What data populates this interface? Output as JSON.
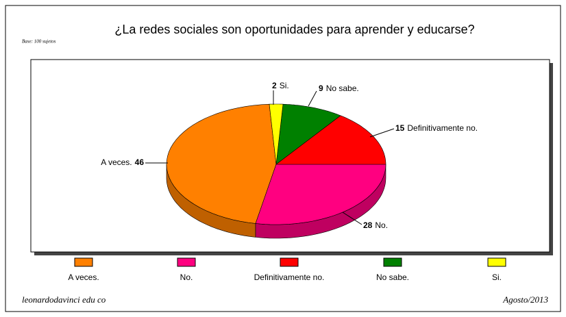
{
  "chart_data": {
    "type": "pie3d",
    "title": "¿La redes sociales son oportunidades para aprender y educarse?",
    "subtitle": "Base: 100 sujetos",
    "categories": [
      "A veces.",
      "No.",
      "Definitivamente no.",
      "No sabe.",
      "Si."
    ],
    "values": [
      46,
      28,
      15,
      9,
      2
    ],
    "colors": [
      "#ff8000",
      "#ff0080",
      "#ff0000",
      "#008000",
      "#ffff00"
    ],
    "legend": "bottom"
  },
  "footer": {
    "left": "leonardodavinci edu co",
    "right": "Agosto/2013"
  }
}
